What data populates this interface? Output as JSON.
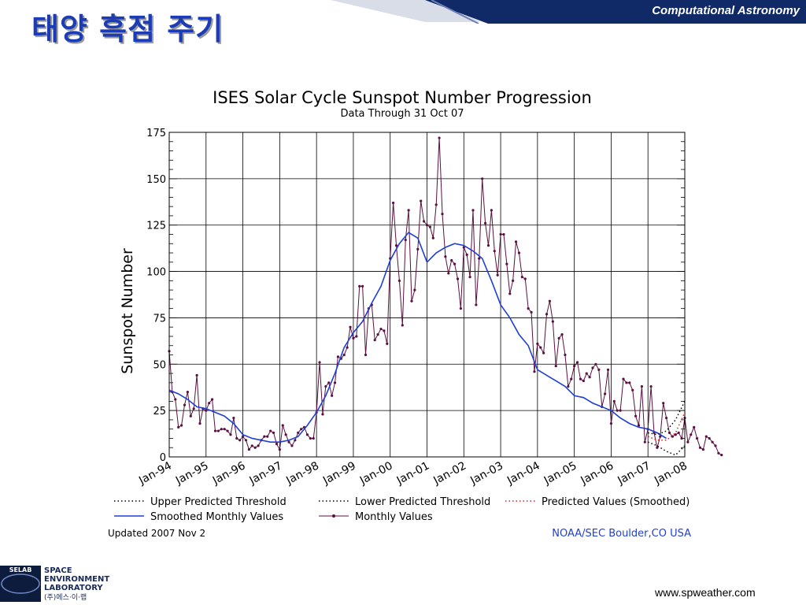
{
  "slide": {
    "title": "태양 흑점 주기",
    "course_label": "Computational Astronomy",
    "footer_url": "www.spweather.com",
    "accent_color": "#1b3cb4",
    "banner_color": "#0f2a66"
  },
  "logo": {
    "badge": "SELAB",
    "line1": "SPACE",
    "line2": "ENVIRONMENT",
    "line3": "LABORATORY",
    "line4": "(주)에스·이·랩"
  },
  "chart_data": {
    "type": "line",
    "title": "ISES Solar Cycle Sunspot Number Progression",
    "subtitle": "Data Through 31 Oct 07",
    "ylabel": "Sunspot Number",
    "xlabel": "",
    "ylim": [
      0,
      175
    ],
    "xlim": [
      1994.0,
      2008.0
    ],
    "y_ticks": [
      "0",
      "25",
      "50",
      "75",
      "100",
      "125",
      "150",
      "175"
    ],
    "x_ticks": [
      "Jan-94",
      "Jan-95",
      "Jan-96",
      "Jan-97",
      "Jan-98",
      "Jan-99",
      "Jan-00",
      "Jan-01",
      "Jan-02",
      "Jan-03",
      "Jan-04",
      "Jan-05",
      "Jan-06",
      "Jan-07",
      "Jan-08"
    ],
    "grid": true,
    "legend_position": "bottom",
    "updated_note": "Updated 2007 Nov  2",
    "source_note": "NOAA/SEC Boulder,CO USA",
    "legend": [
      {
        "label": "Upper Predicted Threshold",
        "color": "#000000",
        "style": "dotted"
      },
      {
        "label": "Lower Predicted Threshold",
        "color": "#000000",
        "style": "dotted"
      },
      {
        "label": "Predicted Values (Smoothed)",
        "color": "#d62020",
        "style": "dotted"
      },
      {
        "label": "Smoothed Monthly Values",
        "color": "#1f3fd6",
        "style": "solid"
      },
      {
        "label": "Monthly Values",
        "color": "#5a1040",
        "style": "line-marker"
      }
    ],
    "series": [
      {
        "name": "Monthly Values",
        "color": "#5a1040",
        "x_start": 1994.0,
        "x_step": 0.083333,
        "values": [
          57,
          35,
          31,
          16,
          17,
          28,
          35,
          22,
          26,
          44,
          18,
          26,
          25,
          29,
          31,
          14,
          14,
          15,
          15,
          14,
          12,
          21,
          10,
          9,
          11,
          9,
          4,
          6,
          5,
          6,
          9,
          11,
          11,
          14,
          13,
          7,
          4,
          17,
          12,
          8,
          6,
          9,
          13,
          15,
          16,
          12,
          10,
          10,
          24,
          51,
          23,
          38,
          40,
          33,
          40,
          54,
          53,
          55,
          59,
          70,
          64,
          65,
          92,
          92,
          55,
          80,
          82,
          63,
          66,
          69,
          68,
          61,
          107,
          137,
          114,
          95,
          71,
          117,
          133,
          84,
          90,
          112,
          138,
          127,
          125,
          124,
          118,
          136,
          172,
          131,
          108,
          99,
          106,
          104,
          96,
          80,
          113,
          109,
          97,
          133,
          82,
          107,
          150,
          126,
          114,
          133,
          111,
          98,
          120,
          120,
          104,
          88,
          95,
          116,
          110,
          97,
          96,
          80,
          78,
          46,
          61,
          59,
          56,
          77,
          84,
          73,
          49,
          64,
          66,
          55,
          38,
          42,
          49,
          51,
          42,
          41,
          45,
          43,
          48,
          50,
          47,
          27,
          34,
          47,
          18,
          30,
          25,
          25,
          42,
          40,
          40,
          36,
          22,
          17,
          38,
          8,
          15,
          38,
          13,
          5,
          11,
          29,
          21,
          13,
          11,
          12,
          13,
          10,
          21,
          8,
          12,
          16,
          10,
          5,
          4,
          11,
          10,
          8,
          6,
          2,
          1
        ]
      },
      {
        "name": "Smoothed Monthly Values",
        "color": "#1f3fd6",
        "x": [
          1994.0,
          1994.25,
          1994.5,
          1994.75,
          1995.0,
          1995.25,
          1995.5,
          1995.75,
          1996.0,
          1996.25,
          1996.5,
          1996.75,
          1997.0,
          1997.25,
          1997.5,
          1997.75,
          1998.0,
          1998.25,
          1998.5,
          1998.75,
          1999.0,
          1999.25,
          1999.5,
          1999.75,
          2000.0,
          2000.25,
          2000.5,
          2000.75,
          2001.0,
          2001.25,
          2001.5,
          2001.75,
          2002.0,
          2002.25,
          2002.5,
          2002.75,
          2003.0,
          2003.25,
          2003.5,
          2003.75,
          2004.0,
          2004.25,
          2004.5,
          2004.75,
          2005.0,
          2005.25,
          2005.5,
          2005.75,
          2006.0,
          2006.25,
          2006.5,
          2006.75,
          2007.0,
          2007.25,
          2007.5
        ],
        "values": [
          36,
          34,
          31,
          27,
          26,
          24,
          22,
          18,
          12,
          10,
          9,
          8,
          8,
          9,
          11,
          17,
          24,
          33,
          45,
          59,
          67,
          73,
          83,
          92,
          106,
          115,
          121,
          118,
          105,
          110,
          113,
          115,
          114,
          111,
          107,
          95,
          82,
          75,
          66,
          60,
          47,
          44,
          41,
          38,
          33,
          32,
          29,
          27,
          25,
          21,
          18,
          16,
          15,
          13,
          10
        ]
      },
      {
        "name": "Upper Predicted Threshold",
        "color": "#000000",
        "x": [
          2007.0,
          2007.25,
          2007.5,
          2007.75,
          2008.0
        ],
        "values": [
          13,
          12,
          14,
          20,
          30
        ]
      },
      {
        "name": "Lower Predicted Threshold",
        "color": "#000000",
        "x": [
          2007.0,
          2007.25,
          2007.5,
          2007.75,
          2008.0
        ],
        "values": [
          8,
          6,
          3,
          1,
          6
        ]
      },
      {
        "name": "Predicted Values (Smoothed)",
        "color": "#d62020",
        "x": [
          2007.0,
          2007.25,
          2007.5,
          2007.75,
          2008.0
        ],
        "values": [
          11,
          9,
          9,
          13,
          24
        ]
      }
    ]
  }
}
